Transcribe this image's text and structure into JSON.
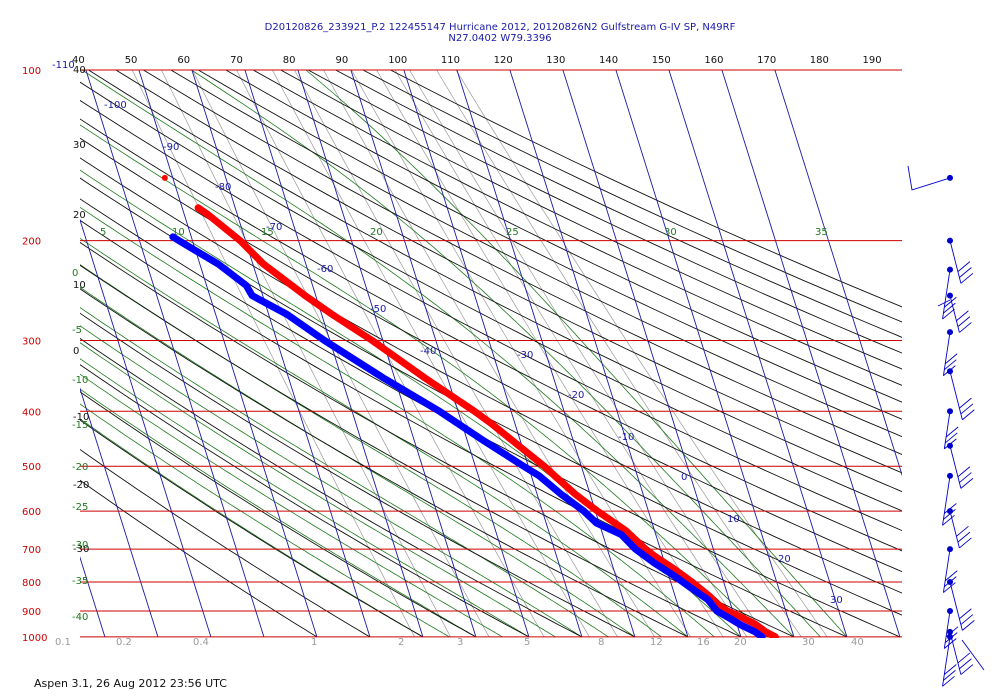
{
  "header": {
    "line1": "D20120826_233921_P.2 122455147 Hurricane 2012, 20120826N2 Gulfstream G-IV SP, N49RF",
    "line2": "N27.0402 W79.3396"
  },
  "footer": "Aspen 3.1, 26 Aug 2012  23:56 UTC",
  "colors": {
    "isobar": "#cc0000",
    "isotherm": "#1a1aa8",
    "dry_adiabat": "#111111",
    "moist_adiabat": "#1f7a1f",
    "mixing_ratio": "#9a9a9a",
    "temperature": "#ff0000",
    "dewpoint": "#0000ff",
    "wind_barb": "#0000cc"
  },
  "chart_data": {
    "type": "skew-t log-p",
    "pressure_levels": [
      100,
      200,
      300,
      400,
      500,
      600,
      700,
      800,
      900,
      1000
    ],
    "isotherm_labels": [
      -110,
      -100,
      -90,
      -80,
      -70,
      -60,
      -50,
      -40,
      -30,
      -20,
      -10,
      0,
      10,
      20,
      30
    ],
    "top_scale_labels": [
      40,
      50,
      60,
      70,
      80,
      90,
      100,
      110,
      120,
      130,
      140,
      150,
      160,
      170,
      180,
      190
    ],
    "left_theta_labels": [
      "40",
      "30",
      "20",
      "10",
      "0",
      "-10",
      "-20",
      "-30"
    ],
    "moist_adiabat_labels": [
      "5",
      "10",
      "15",
      "20",
      "25",
      "30",
      "35"
    ],
    "left_green_labels": [
      "0",
      "-5",
      "-10",
      "-15",
      "-20",
      "-25",
      "-30",
      "-35",
      "-40"
    ],
    "mixing_ratio_labels": [
      "0.1",
      "0.2",
      "0.4",
      "1",
      "2",
      "3",
      "5",
      "8",
      "12",
      "16",
      "20",
      "30",
      "40"
    ],
    "temperature_profile": [
      {
        "p": 1000,
        "t": 26.5
      },
      {
        "p": 980,
        "t": 25.0
      },
      {
        "p": 950,
        "t": 23.5
      },
      {
        "p": 920,
        "t": 21.0
      },
      {
        "p": 900,
        "t": 19.0
      },
      {
        "p": 880,
        "t": 17.8
      },
      {
        "p": 850,
        "t": 16.6
      },
      {
        "p": 800,
        "t": 14.0
      },
      {
        "p": 760,
        "t": 11.5
      },
      {
        "p": 720,
        "t": 8.5
      },
      {
        "p": 700,
        "t": 7.2
      },
      {
        "p": 650,
        "t": 4.6
      },
      {
        "p": 600,
        "t": 0.4
      },
      {
        "p": 560,
        "t": -2.8
      },
      {
        "p": 520,
        "t": -5.6
      },
      {
        "p": 500,
        "t": -7.0
      },
      {
        "p": 460,
        "t": -10.6
      },
      {
        "p": 420,
        "t": -14.5
      },
      {
        "p": 400,
        "t": -16.9
      },
      {
        "p": 350,
        "t": -24.2
      },
      {
        "p": 300,
        "t": -32.0
      },
      {
        "p": 270,
        "t": -38.0
      },
      {
        "p": 250,
        "t": -42.0
      },
      {
        "p": 220,
        "t": -48.0
      },
      {
        "p": 200,
        "t": -51.0
      },
      {
        "p": 180,
        "t": -55.5
      },
      {
        "p": 175,
        "t": -57.0
      }
    ],
    "temperature_isolated_point": {
      "p": 155,
      "t": -61.5
    },
    "dewpoint_profile": [
      {
        "p": 1000,
        "td": 24.0
      },
      {
        "p": 980,
        "td": 23.0
      },
      {
        "p": 950,
        "td": 20.5
      },
      {
        "p": 920,
        "td": 18.5
      },
      {
        "p": 900,
        "td": 17.0
      },
      {
        "p": 860,
        "td": 16.0
      },
      {
        "p": 820,
        "td": 13.5
      },
      {
        "p": 780,
        "td": 11.0
      },
      {
        "p": 740,
        "td": 8.0
      },
      {
        "p": 700,
        "td": 5.3
      },
      {
        "p": 660,
        "td": 3.5
      },
      {
        "p": 630,
        "td": -0.5
      },
      {
        "p": 600,
        "td": -2.2
      },
      {
        "p": 560,
        "td": -5.5
      },
      {
        "p": 520,
        "td": -8.5
      },
      {
        "p": 500,
        "td": -10.9
      },
      {
        "p": 450,
        "td": -17.0
      },
      {
        "p": 400,
        "td": -23.5
      },
      {
        "p": 350,
        "td": -32.0
      },
      {
        "p": 300,
        "td": -41.0
      },
      {
        "p": 270,
        "td": -46.5
      },
      {
        "p": 250,
        "td": -52.0
      },
      {
        "p": 240,
        "td": -52.5
      },
      {
        "p": 220,
        "td": -56.5
      },
      {
        "p": 205,
        "td": -61.0
      },
      {
        "p": 197,
        "td": -63.5
      }
    ],
    "wind_levels": [
      155,
      200,
      225,
      250,
      290,
      340,
      400,
      460,
      520,
      600,
      700,
      800,
      900,
      980,
      1000
    ]
  }
}
